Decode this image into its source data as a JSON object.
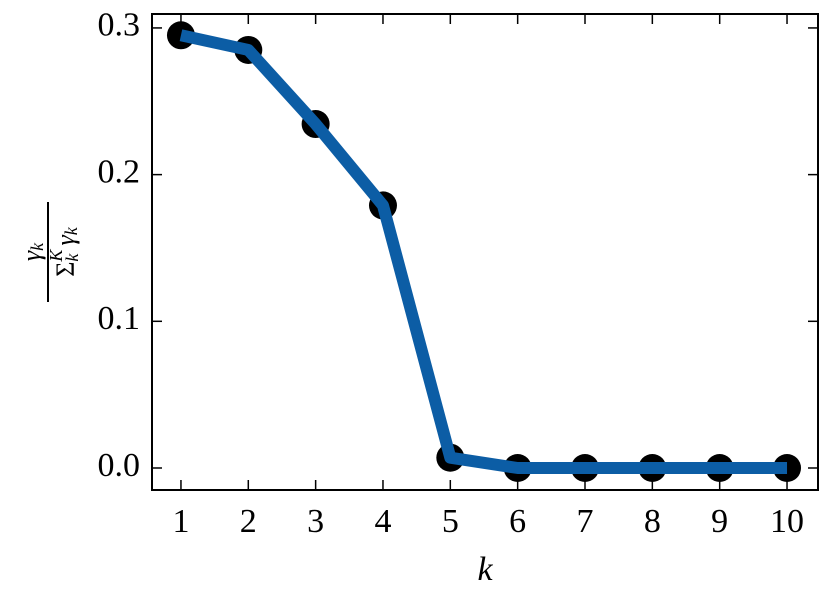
{
  "chart_data": {
    "type": "line",
    "xlabel": "k",
    "ylabel": {
      "numerator": [
        "γ",
        "k"
      ],
      "denominator": [
        "Σ",
        "k",
        "K",
        "γ",
        "k"
      ]
    },
    "x": [
      1,
      2,
      3,
      4,
      5,
      6,
      7,
      8,
      9,
      10
    ],
    "series": [
      {
        "color": "#0C5DA5",
        "marker_color": "#000000",
        "values": [
          0.295,
          0.285,
          0.2345,
          0.179,
          0.007,
          0,
          0,
          0,
          0,
          0
        ]
      }
    ],
    "xlim": [
      0.57,
      10.46
    ],
    "ylim": [
      -0.015,
      0.3095
    ],
    "xticks": [
      1,
      2,
      3,
      4,
      5,
      6,
      7,
      8,
      9,
      10
    ],
    "yticks": [
      {
        "value": 0,
        "label": "0.0"
      },
      0.1,
      0.2,
      0.3
    ]
  }
}
